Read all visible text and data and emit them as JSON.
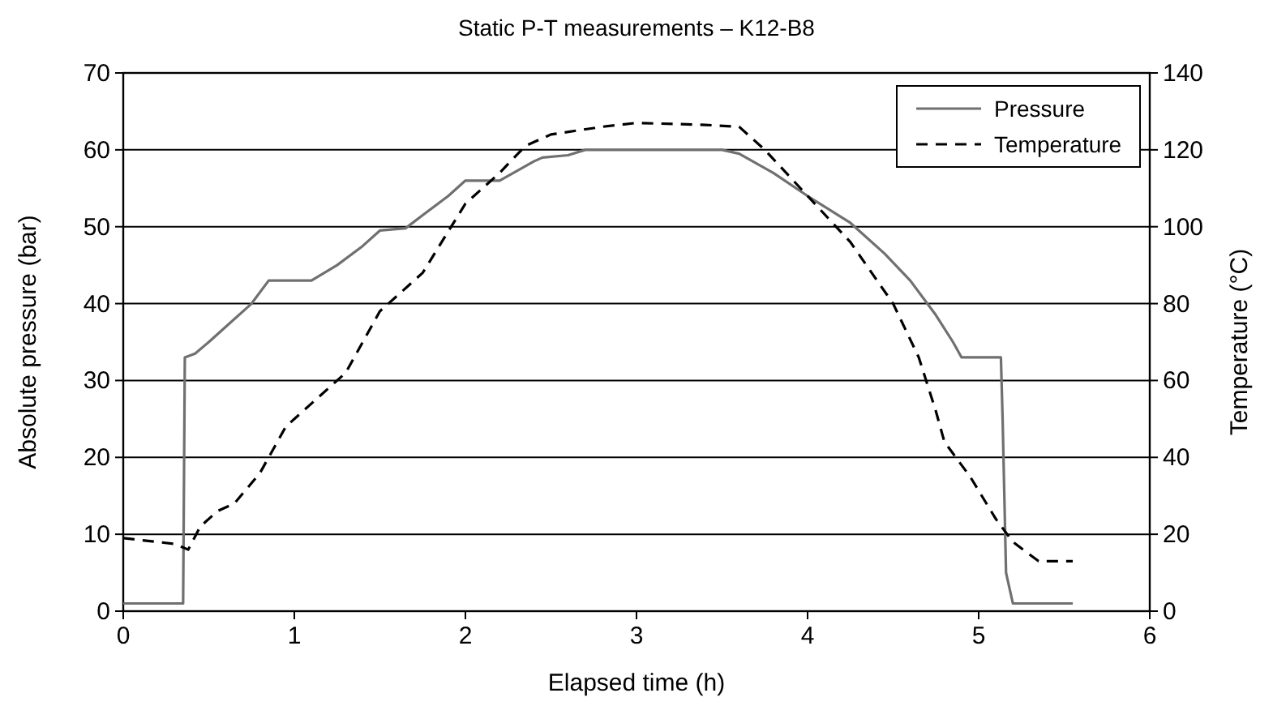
{
  "chart_data": {
    "type": "line",
    "title": "Static P-T measurements – K12-B8",
    "xlabel": "Elapsed time (h)",
    "ylabel": "Absolute pressure (bar)",
    "y2label": "Temperature (°C)",
    "xlim": [
      0,
      6
    ],
    "xticks": [
      0,
      1,
      2,
      3,
      4,
      5,
      6
    ],
    "ylim": [
      0,
      70
    ],
    "yticks": [
      0,
      10,
      20,
      30,
      40,
      50,
      60,
      70
    ],
    "y2lim": [
      0,
      140
    ],
    "y2ticks": [
      0,
      20,
      40,
      60,
      80,
      100,
      120,
      140
    ],
    "grid": "y",
    "legend": "top right",
    "series": [
      {
        "name": "Pressure",
        "color": "#707070",
        "line_style": "solid",
        "x": [
          0,
          0.35,
          0.36,
          0.42,
          0.5,
          0.6,
          0.75,
          0.85,
          1.1,
          1.25,
          1.4,
          1.5,
          1.65,
          1.75,
          1.9,
          2.0,
          2.2,
          2.4,
          2.45,
          2.6,
          2.7,
          3.5,
          3.6,
          3.8,
          4.0,
          4.25,
          4.45,
          4.6,
          4.75,
          4.85,
          4.9,
          5.13,
          5.14,
          5.15,
          5.16,
          5.2,
          5.55
        ],
        "values": [
          1,
          1,
          33,
          33.5,
          35,
          37,
          40,
          43,
          43,
          45,
          47.5,
          49.5,
          49.8,
          51.5,
          54,
          56,
          56,
          58.5,
          59,
          59.3,
          60,
          60,
          59.5,
          57,
          54,
          50.5,
          46.5,
          43,
          38.5,
          35,
          33,
          33,
          25,
          15,
          5,
          1,
          1
        ]
      },
      {
        "name": "Temperature",
        "color": "#000000",
        "line_style": "dashed",
        "axis": "y2",
        "x": [
          0,
          0.3,
          0.38,
          0.45,
          0.55,
          0.65,
          0.8,
          0.95,
          1.1,
          1.3,
          1.5,
          1.75,
          2.0,
          2.2,
          2.35,
          2.5,
          2.8,
          3.0,
          3.4,
          3.6,
          3.75,
          4.0,
          4.25,
          4.5,
          4.65,
          4.75,
          4.8,
          4.95,
          5.1,
          5.2,
          5.35,
          5.55
        ],
        "values": [
          19,
          17.5,
          16,
          22,
          26,
          28,
          36,
          48,
          54,
          62,
          78,
          88,
          106,
          114,
          121,
          124,
          126,
          127,
          126.5,
          126,
          120,
          108,
          96,
          80,
          66,
          52,
          44,
          35,
          24,
          18,
          13,
          13
        ]
      }
    ]
  }
}
